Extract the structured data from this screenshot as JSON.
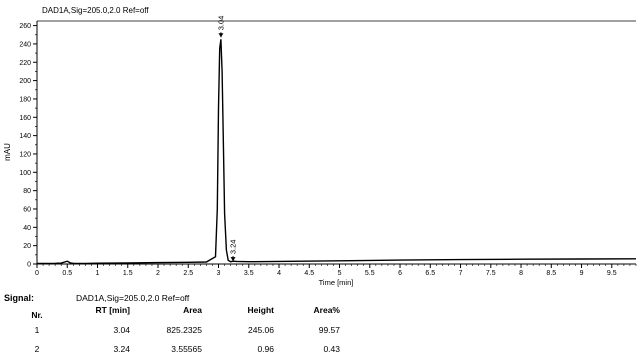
{
  "chart_data": {
    "type": "line",
    "title": "DAD1A,Sig=205.0,2.0 Ref=off",
    "xlabel": "Time [min]",
    "ylabel": "mAU",
    "xlim": [
      0,
      9.9
    ],
    "ylim": [
      0,
      265
    ],
    "x_ticks": [
      0,
      0.5,
      1,
      1.5,
      2,
      2.5,
      3,
      3.5,
      4,
      4.5,
      5,
      5.5,
      6,
      6.5,
      7,
      7.5,
      8,
      8.5,
      9,
      9.5
    ],
    "x_tick_labels": [
      "0",
      "0.5",
      "1",
      "1.5",
      "2",
      "2.5",
      "3",
      "3.5",
      "4",
      "4.5",
      "5",
      "5.5",
      "6",
      "6.5",
      "7",
      "7.5",
      "8",
      "8.5",
      "9",
      "9.5"
    ],
    "y_ticks": [
      0,
      20,
      40,
      60,
      80,
      100,
      120,
      140,
      160,
      180,
      200,
      220,
      240,
      260
    ],
    "y_tick_labels": [
      "0",
      "20",
      "40",
      "60",
      "80",
      "100",
      "120",
      "140",
      "160",
      "180",
      "200",
      "220",
      "240",
      "260"
    ],
    "grid": false,
    "series": [
      {
        "x": [
          0,
          0.3,
          0.4,
          0.5,
          0.55,
          0.6,
          0.8,
          1.0,
          1.5,
          2.0,
          2.5,
          2.8,
          2.95,
          2.98,
          3.0,
          3.02,
          3.04,
          3.06,
          3.08,
          3.1,
          3.13,
          3.16,
          3.2,
          3.24,
          3.3,
          3.5,
          4.0,
          5.0,
          6.0,
          7.0,
          8.0,
          9.0,
          9.9
        ],
        "y": [
          0.5,
          0.8,
          1.0,
          3.0,
          1.2,
          0.8,
          0.6,
          0.9,
          1.2,
          1.5,
          1.8,
          2.2,
          8,
          60,
          170,
          235,
          245,
          210,
          130,
          55,
          15,
          4,
          2.5,
          3.0,
          2.8,
          2.5,
          2.8,
          3.5,
          4.2,
          4.8,
          5.2,
          5.5,
          5.7
        ]
      }
    ],
    "peaks": [
      {
        "label": "3.04",
        "x": 3.04,
        "y": 245.06
      },
      {
        "label": "3.24",
        "x": 3.24,
        "y": 0.96
      }
    ]
  },
  "table": {
    "signal_label": "Signal:",
    "signal_value": "DAD1A,Sig=205.0,2.0  Ref=off",
    "columns": [
      "Nr.",
      "RT [min]",
      "Area",
      "Height",
      "Area%"
    ],
    "rows": [
      [
        "1",
        "3.04",
        "825.2325",
        "245.06",
        "99.57"
      ],
      [
        "2",
        "3.24",
        "3.55565",
        "0.96",
        "0.43"
      ]
    ]
  }
}
